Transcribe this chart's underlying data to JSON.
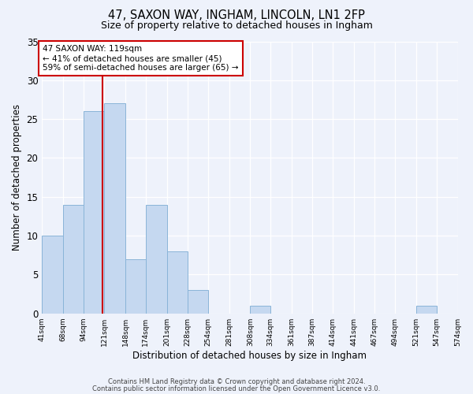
{
  "title1": "47, SAXON WAY, INGHAM, LINCOLN, LN1 2FP",
  "title2": "Size of property relative to detached houses in Ingham",
  "xlabel": "Distribution of detached houses by size in Ingham",
  "ylabel": "Number of detached properties",
  "bin_edges": [
    41,
    68,
    94,
    121,
    148,
    174,
    201,
    228,
    254,
    281,
    308,
    334,
    361,
    387,
    414,
    441,
    467,
    494,
    521,
    547,
    574
  ],
  "bin_counts": [
    10,
    14,
    26,
    27,
    7,
    14,
    8,
    3,
    0,
    0,
    1,
    0,
    0,
    0,
    0,
    0,
    0,
    0,
    1,
    0
  ],
  "bar_color": "#c5d8f0",
  "bar_edge_color": "#8ab4d8",
  "property_size": 119,
  "vline_color": "#cc0000",
  "ylim": [
    0,
    35
  ],
  "yticks": [
    0,
    5,
    10,
    15,
    20,
    25,
    30,
    35
  ],
  "annotation_text": "47 SAXON WAY: 119sqm\n← 41% of detached houses are smaller (45)\n59% of semi-detached houses are larger (65) →",
  "annotation_box_color": "#ffffff",
  "annotation_box_edge": "#cc0000",
  "footer1": "Contains HM Land Registry data © Crown copyright and database right 2024.",
  "footer2": "Contains public sector information licensed under the Open Government Licence v3.0.",
  "bg_color": "#eef2fb",
  "grid_color": "#ffffff"
}
